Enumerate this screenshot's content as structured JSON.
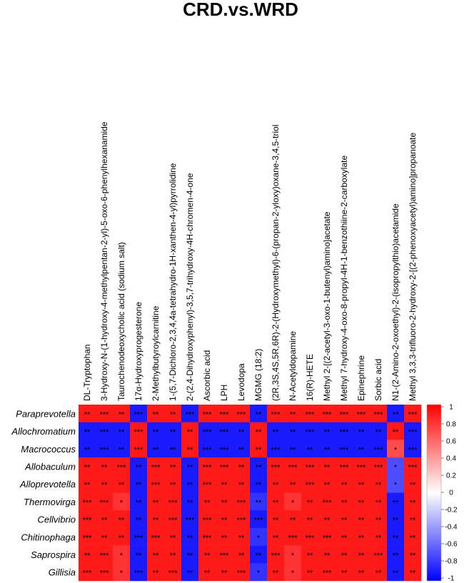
{
  "chart_data": {
    "type": "heatmap",
    "title": "CRD.vs.WRD",
    "columns": [
      "DL-Tryptophan",
      "3-Hydroxy-N-(1-hydroxy-4-methylpentan-2-yl)-5-oxo-6-phenylhexanamide",
      "Taurochenodeoxycholic acid (sodium salt)",
      "17α-Hydroxyprogesterone",
      "2-Methylbutyroylcarnitine",
      "1-(5,7-Dichloro-2,3,4,4a-tetrahydro-1H-xanthen-4-yl)pyrrolidine",
      "2-(2,4-Dihydroxyphenyl)-3,5,7-trihydroxy-4H-chromen-4-one",
      "Ascorbic acid",
      "LPH",
      "Levodopa",
      "MGMG (18:2)",
      "(2R,3S,4S,5R,6R)-2-(Hydroxymethyl)-6-(propan-2-yloxy)oxane-3,4,5-triol",
      "N-Acetyldopamine",
      "16(R)-HETE",
      "Methyl 2-[(2-acetyl-3-oxo-1-butenyl)amino]acetate",
      "Methyl 7-hydroxy-4-oxo-8-propyl-4H-1-benzothiine-2-carboxylate",
      "Epinephrine",
      "Sorbic acid",
      "N1-(2-Amino-2-oxoethyl)-2-(isopropylthio)acetamide",
      "Methyl 3,3,3-trifluoro-2-hydroxy-2-[(2-phenoxyacetyl)amino]propanoate"
    ],
    "rows": [
      "Paraprevotella",
      "Allochromatium",
      "Macrococcus",
      "Allobaculum",
      "Alloprevotella",
      "Thermovirga",
      "Cellvibrio",
      "Chitinophaga",
      "Saprospira",
      "Gillisia"
    ],
    "values": [
      [
        0.9,
        0.9,
        0.9,
        -0.9,
        0.9,
        0.9,
        -0.9,
        0.9,
        0.9,
        0.9,
        -0.9,
        0.9,
        0.9,
        0.9,
        0.9,
        0.9,
        0.9,
        0.9,
        -0.9,
        0.9
      ],
      [
        -0.9,
        -0.9,
        -0.9,
        0.9,
        -0.9,
        -0.9,
        0.9,
        -0.9,
        -0.9,
        -0.9,
        0.9,
        -0.9,
        -0.9,
        -0.9,
        -0.9,
        -0.9,
        -0.9,
        -0.9,
        0.9,
        -0.9
      ],
      [
        -0.9,
        -0.9,
        -0.9,
        0.9,
        -0.9,
        -0.9,
        0.9,
        -0.9,
        -0.9,
        -0.9,
        0.9,
        -0.9,
        -0.9,
        -0.9,
        -0.9,
        -0.9,
        -0.9,
        -0.9,
        0.7,
        -0.9
      ],
      [
        0.9,
        0.9,
        0.9,
        -0.9,
        0.9,
        0.9,
        -0.9,
        0.9,
        0.9,
        0.9,
        -0.9,
        0.9,
        0.9,
        0.9,
        0.9,
        0.9,
        0.9,
        0.9,
        -0.7,
        0.9
      ],
      [
        0.9,
        0.9,
        0.9,
        -0.9,
        0.9,
        0.9,
        -0.9,
        0.9,
        0.9,
        0.9,
        -0.9,
        0.9,
        0.9,
        0.9,
        0.9,
        0.9,
        0.9,
        0.9,
        -0.7,
        0.9
      ],
      [
        0.9,
        0.9,
        0.8,
        -0.9,
        0.9,
        0.9,
        -0.9,
        0.9,
        0.9,
        0.9,
        -0.8,
        0.9,
        0.8,
        0.9,
        0.9,
        0.9,
        0.9,
        0.9,
        -0.9,
        0.9
      ],
      [
        0.9,
        0.9,
        0.9,
        -0.9,
        0.9,
        0.9,
        -0.9,
        0.9,
        0.9,
        0.9,
        -0.9,
        0.9,
        0.9,
        0.9,
        0.9,
        0.9,
        0.9,
        0.9,
        -0.9,
        0.9
      ],
      [
        0.9,
        0.9,
        0.9,
        -0.9,
        0.9,
        0.9,
        -0.9,
        0.9,
        0.9,
        0.9,
        -0.8,
        0.9,
        0.9,
        0.9,
        0.9,
        0.9,
        0.9,
        0.9,
        -0.9,
        0.9
      ],
      [
        0.9,
        0.9,
        0.8,
        -0.9,
        0.9,
        0.9,
        -0.9,
        0.9,
        0.9,
        0.9,
        -0.9,
        0.9,
        0.8,
        0.9,
        0.9,
        0.9,
        0.9,
        0.9,
        -0.9,
        0.9
      ],
      [
        0.9,
        0.9,
        0.8,
        -0.9,
        0.9,
        0.9,
        -0.9,
        0.9,
        0.9,
        0.9,
        -0.8,
        0.9,
        0.8,
        0.9,
        0.9,
        0.9,
        0.9,
        0.9,
        -0.9,
        0.9
      ]
    ],
    "significance": [
      [
        "**",
        "***",
        "**",
        "***",
        "**",
        "**",
        "***",
        "***",
        "***",
        "***",
        "**",
        "***",
        "**",
        "***",
        "***",
        "***",
        "***",
        "***",
        "**",
        "***"
      ],
      [
        "**",
        "***",
        "**",
        "***",
        "**",
        "**",
        "**",
        "***",
        "***",
        "**",
        "**",
        "**",
        "**",
        "***",
        "**",
        "***",
        "**",
        "**",
        "**",
        "***"
      ],
      [
        "**",
        "***",
        "**",
        "***",
        "**",
        "**",
        "**",
        "***",
        "***",
        "**",
        "**",
        "***",
        "**",
        "**",
        "**",
        "***",
        "**",
        "***",
        "*",
        "***"
      ],
      [
        "**",
        "**",
        "***",
        "**",
        "***",
        "**",
        "**",
        "***",
        "***",
        "**",
        "**",
        "***",
        "***",
        "***",
        "**",
        "***",
        "***",
        "***",
        "*",
        "***"
      ],
      [
        "**",
        "**",
        "**",
        "**",
        "***",
        "**",
        "**",
        "***",
        "**",
        "**",
        "**",
        "**",
        "**",
        "***",
        "**",
        "**",
        "**",
        "**",
        "*",
        "**"
      ],
      [
        "***",
        "***",
        "*",
        "**",
        "**",
        "***",
        "**",
        "**",
        "**",
        "***",
        "**",
        "**",
        "*",
        "**",
        "***",
        "**",
        "**",
        "**",
        "**",
        "**"
      ],
      [
        "***",
        "**",
        "**",
        "**",
        "**",
        "***",
        "***",
        "***",
        "**",
        "***",
        "***",
        "**",
        "**",
        "**",
        "**",
        "**",
        "**",
        "**",
        "**",
        "**"
      ],
      [
        "***",
        "**",
        "**",
        "***",
        "***",
        "**",
        "**",
        "***",
        "**",
        "**",
        "*",
        "**",
        "***",
        "***",
        "***",
        "**",
        "**",
        "**",
        "**",
        "**"
      ],
      [
        "**",
        "***",
        "*",
        "**",
        "**",
        "**",
        "**",
        "**",
        "***",
        "**",
        "**",
        "***",
        "*",
        "**",
        "**",
        "**",
        "**",
        "***",
        "**",
        "**"
      ],
      [
        "***",
        "***",
        "*",
        "***",
        "**",
        "***",
        "**",
        "**",
        "**",
        "***",
        "*",
        "**",
        "*",
        "**",
        "***",
        "**",
        "**",
        "**",
        "**",
        "**"
      ]
    ],
    "colorbar": {
      "ticks": [
        "1",
        "0.8",
        "0.6",
        "0.4",
        "0.2",
        "0",
        "-0.2",
        "-0.4",
        "-0.6",
        "-0.8",
        "-1"
      ],
      "high_color": "#ff0000",
      "mid_color": "#ffffff",
      "low_color": "#0000ff"
    },
    "zlim": [
      -1,
      1
    ]
  }
}
